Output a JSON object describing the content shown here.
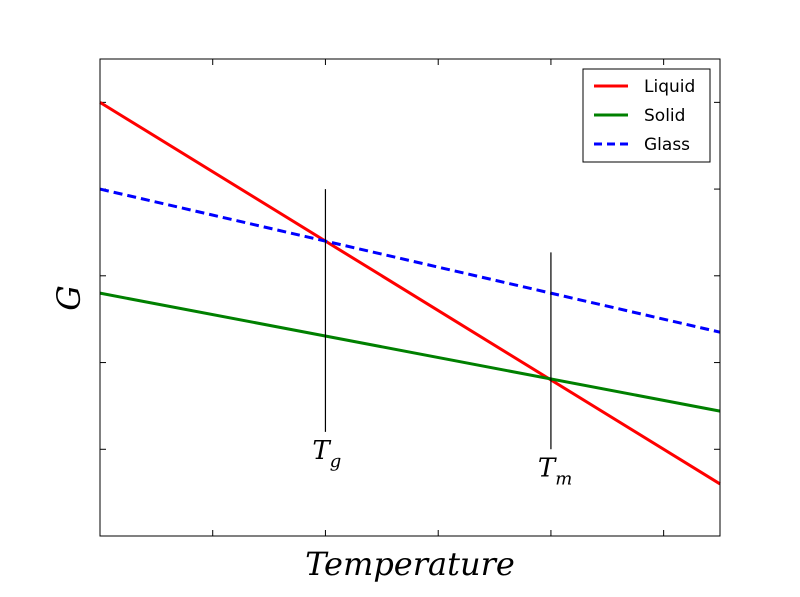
{
  "chart_data": {
    "type": "line",
    "xlabel": "Temperature",
    "ylabel": "G",
    "xlim": [
      0,
      1
    ],
    "ylim": [
      0,
      1
    ],
    "grid": false,
    "legend_placement": "top-right",
    "x_tick_values": [
      0.1818,
      0.3636,
      0.5455,
      0.7273,
      0.9091
    ],
    "y_tick_values": [
      0.1818,
      0.3636,
      0.5455,
      0.7273,
      0.9091
    ],
    "series": [
      {
        "name": "Liquid",
        "color": "#ff0000",
        "dash": "solid",
        "x": [
          0,
          1
        ],
        "y": [
          0.9091,
          0.1091
        ]
      },
      {
        "name": "Solid",
        "color": "#008000",
        "dash": "solid",
        "x": [
          0,
          1
        ],
        "y": [
          0.5091,
          0.2618
        ]
      },
      {
        "name": "Glass",
        "color": "#0000ff",
        "dash": "dashed",
        "x": [
          0,
          1
        ],
        "y": [
          0.7273,
          0.4273
        ]
      }
    ],
    "markers": [
      {
        "label_base": "T",
        "label_sub": "g",
        "x": 0.3636,
        "y_from": 0.2182,
        "y_to": 0.7273
      },
      {
        "label_base": "T",
        "label_sub": "m",
        "x": 0.7273,
        "y_from": 0.1818,
        "y_to": 0.5945
      }
    ]
  }
}
